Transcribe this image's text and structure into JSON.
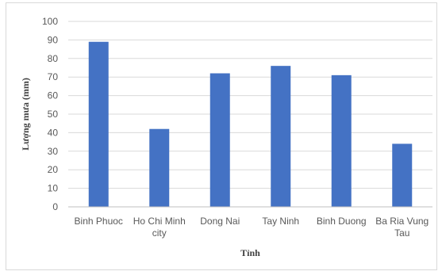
{
  "chart_data": {
    "type": "bar",
    "categories": [
      [
        "Binh Phuoc"
      ],
      [
        "Ho Chi Minh",
        "city"
      ],
      [
        "Dong Nai"
      ],
      [
        "Tay Ninh"
      ],
      [
        "Binh Duong"
      ],
      [
        "Ba Ria Vung",
        "Tau"
      ]
    ],
    "values": [
      89,
      42,
      72,
      76,
      71,
      34
    ],
    "xlabel": "Tỉnh",
    "ylabel": "Lượng mưa (mm)",
    "ylim": [
      0,
      100
    ],
    "yticks": [
      0,
      10,
      20,
      30,
      40,
      50,
      60,
      70,
      80,
      90,
      100
    ],
    "grid": true,
    "legend": "none",
    "colors": {
      "bar": "#4472c4",
      "grid": "#d9d9d9",
      "axis": "#bfbfbf"
    }
  }
}
